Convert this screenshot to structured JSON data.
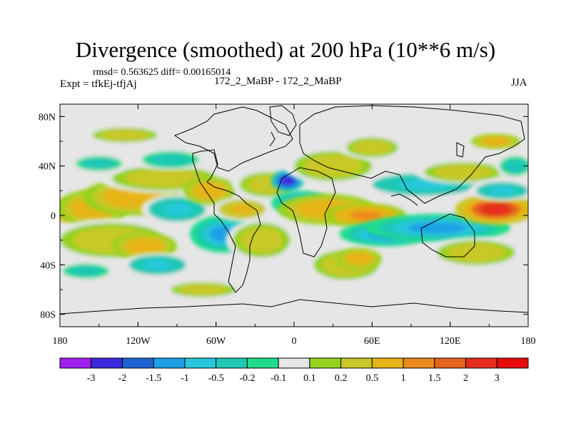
{
  "header": {
    "title": "Divergence (smoothed) at 200 hPa (10**6 m/s)",
    "stats": "rmsd= 0.563625 diff= 0.00165014",
    "experiment": "Expt = tfkEj-tfjAj",
    "case_label": "172_2_MaBP - 172_2_MaBP",
    "season": "JJA"
  },
  "chart_data": {
    "type": "heatmap",
    "title": "Divergence (smoothed) at 200 hPa (10**6 m/s)",
    "x_ticks": [
      "180",
      "120W",
      "60W",
      "0",
      "60E",
      "120E",
      "180"
    ],
    "y_ticks": [
      "80N",
      "40N",
      "0",
      "40S",
      "80S"
    ],
    "x_tick_values": [
      -180,
      -120,
      -60,
      0,
      60,
      120,
      180
    ],
    "y_tick_values": [
      80,
      40,
      0,
      -40,
      -80
    ],
    "xlim": [
      -180,
      180
    ],
    "ylim": [
      -90,
      90
    ],
    "colorbar_labels": [
      "-3",
      "-2",
      "-1.5",
      "-1",
      "-0.5",
      "-0.2",
      "-0.1",
      "0.1",
      "0.2",
      "0.5",
      "1",
      "1.5",
      "2",
      "3"
    ],
    "colorbar_colors": [
      "#a020f0",
      "#3c2ae0",
      "#1e64d2",
      "#1ea0e6",
      "#28c8dc",
      "#1ec8b4",
      "#1edc8c",
      "#e6e6e6",
      "#96d21e",
      "#c8c828",
      "#e6b414",
      "#ec8c1e",
      "#e6641e",
      "#e62d1e",
      "#e60a0a"
    ],
    "blobs": [
      {
        "lon": -170,
        "lat": 4,
        "rlon": 16,
        "rlat": 8,
        "value": 2.0
      },
      {
        "lon": -155,
        "lat": 6,
        "rlon": 22,
        "rlat": 12,
        "value": 1.0
      },
      {
        "lon": -125,
        "lat": 15,
        "rlon": 30,
        "rlat": 12,
        "value": 0.8
      },
      {
        "lon": -140,
        "lat": -20,
        "rlon": 40,
        "rlat": 14,
        "value": 0.5
      },
      {
        "lon": -115,
        "lat": -25,
        "rlon": 20,
        "rlat": 9,
        "value": 1.0
      },
      {
        "lon": -100,
        "lat": 30,
        "rlon": 40,
        "rlat": 10,
        "value": 0.5
      },
      {
        "lon": -90,
        "lat": 5,
        "rlon": 22,
        "rlat": 10,
        "value": -0.6
      },
      {
        "lon": -160,
        "lat": -45,
        "rlon": 18,
        "rlat": 6,
        "value": -0.4
      },
      {
        "lon": -105,
        "lat": -40,
        "rlon": 22,
        "rlat": 8,
        "value": -0.5
      },
      {
        "lon": -150,
        "lat": 42,
        "rlon": 18,
        "rlat": 6,
        "value": -0.3
      },
      {
        "lon": -95,
        "lat": 45,
        "rlon": 22,
        "rlat": 7,
        "value": -0.4
      },
      {
        "lon": -65,
        "lat": 20,
        "rlon": 16,
        "rlat": 9,
        "value": 1.0
      },
      {
        "lon": -55,
        "lat": -15,
        "rlon": 20,
        "rlat": 12,
        "value": -1.0
      },
      {
        "lon": -40,
        "lat": 5,
        "rlon": 18,
        "rlat": 8,
        "value": 0.6
      },
      {
        "lon": -20,
        "lat": 25,
        "rlon": 22,
        "rlat": 10,
        "value": 0.5
      },
      {
        "lon": -25,
        "lat": -20,
        "rlon": 22,
        "rlat": 14,
        "value": 0.5
      },
      {
        "lon": -5,
        "lat": 28,
        "rlon": 10,
        "rlat": 7,
        "value": -2.6
      },
      {
        "lon": 5,
        "lat": 10,
        "rlon": 18,
        "rlat": 8,
        "value": -0.8
      },
      {
        "lon": 30,
        "lat": 40,
        "rlon": 30,
        "rlat": 12,
        "value": 0.3
      },
      {
        "lon": 25,
        "lat": 5,
        "rlon": 30,
        "rlat": 10,
        "value": 1.0
      },
      {
        "lon": 55,
        "lat": 0,
        "rlon": 25,
        "rlat": 8,
        "value": 1.3
      },
      {
        "lon": 70,
        "lat": -15,
        "rlon": 28,
        "rlat": 8,
        "value": -1.1
      },
      {
        "lon": 110,
        "lat": -10,
        "rlon": 45,
        "rlat": 9,
        "value": -1.2
      },
      {
        "lon": 100,
        "lat": 25,
        "rlon": 40,
        "rlat": 9,
        "value": -0.5
      },
      {
        "lon": 40,
        "lat": -40,
        "rlon": 25,
        "rlat": 12,
        "value": 0.4
      },
      {
        "lon": 50,
        "lat": -35,
        "rlon": 14,
        "rlat": 7,
        "value": 0.9
      },
      {
        "lon": 140,
        "lat": -30,
        "rlon": 30,
        "rlat": 10,
        "value": 0.5
      },
      {
        "lon": 130,
        "lat": 35,
        "rlon": 30,
        "rlat": 8,
        "value": 0.5
      },
      {
        "lon": 155,
        "lat": 5,
        "rlon": 25,
        "rlat": 10,
        "value": 2.2
      },
      {
        "lon": 170,
        "lat": 40,
        "rlon": 12,
        "rlat": 8,
        "value": -0.4
      },
      {
        "lon": 160,
        "lat": 20,
        "rlon": 20,
        "rlat": 7,
        "value": -0.5
      },
      {
        "lon": 155,
        "lat": 60,
        "rlon": 15,
        "rlat": 5,
        "value": 1.0
      },
      {
        "lon": 60,
        "lat": 55,
        "rlon": 20,
        "rlat": 8,
        "value": 0.4
      },
      {
        "lon": -70,
        "lat": -60,
        "rlon": 25,
        "rlat": 6,
        "value": 0.4
      },
      {
        "lon": -130,
        "lat": 65,
        "rlon": 25,
        "rlat": 6,
        "value": 0.3
      }
    ]
  }
}
